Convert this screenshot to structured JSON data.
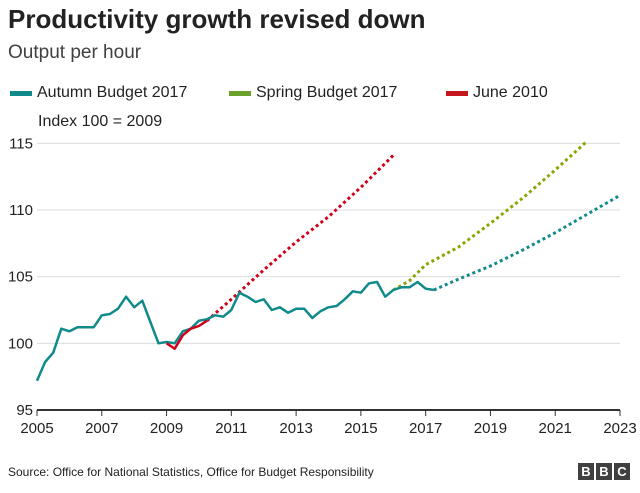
{
  "chart_data": {
    "type": "line",
    "title": "Productivity growth revised down",
    "subtitle": "Output per hour",
    "note": "Index 100 = 2009",
    "xlabel": "",
    "ylabel": "",
    "xlim": [
      2005,
      2023
    ],
    "ylim": [
      95,
      116
    ],
    "x_ticks": [
      "2005",
      "2007",
      "2009",
      "2011",
      "2013",
      "2015",
      "2017",
      "2019",
      "2021",
      "2023"
    ],
    "y_ticks": [
      "95",
      "100",
      "105",
      "110",
      "115"
    ],
    "grid": "horizontal",
    "legend_position": "top",
    "series": [
      {
        "name": "Autumn Budget 2017",
        "color": "#118a8b",
        "points": [
          [
            2005.0,
            97.2
          ],
          [
            2005.25,
            98.6
          ],
          [
            2005.5,
            99.3
          ],
          [
            2005.75,
            101.1
          ],
          [
            2006.0,
            100.9
          ],
          [
            2006.25,
            101.2
          ],
          [
            2006.5,
            101.2
          ],
          [
            2006.75,
            101.2
          ],
          [
            2007.0,
            102.1
          ],
          [
            2007.25,
            102.2
          ],
          [
            2007.5,
            102.6
          ],
          [
            2007.75,
            103.5
          ],
          [
            2008.0,
            102.7
          ],
          [
            2008.25,
            103.2
          ],
          [
            2008.5,
            101.6
          ],
          [
            2008.75,
            100.0
          ],
          [
            2009.0,
            100.1
          ],
          [
            2009.25,
            100.0
          ],
          [
            2009.5,
            100.9
          ],
          [
            2009.75,
            101.1
          ],
          [
            2010.0,
            101.7
          ],
          [
            2010.25,
            101.8
          ],
          [
            2010.5,
            102.1
          ],
          [
            2010.75,
            102.0
          ],
          [
            2011.0,
            102.5
          ],
          [
            2011.25,
            103.8
          ],
          [
            2011.5,
            103.5
          ],
          [
            2011.75,
            103.1
          ],
          [
            2012.0,
            103.3
          ],
          [
            2012.25,
            102.5
          ],
          [
            2012.5,
            102.7
          ],
          [
            2012.75,
            102.3
          ],
          [
            2013.0,
            102.6
          ],
          [
            2013.25,
            102.6
          ],
          [
            2013.5,
            101.9
          ],
          [
            2013.75,
            102.4
          ],
          [
            2014.0,
            102.7
          ],
          [
            2014.25,
            102.8
          ],
          [
            2014.5,
            103.3
          ],
          [
            2014.75,
            103.9
          ],
          [
            2015.0,
            103.8
          ],
          [
            2015.25,
            104.5
          ],
          [
            2015.5,
            104.6
          ],
          [
            2015.75,
            103.5
          ],
          [
            2016.0,
            104.0
          ],
          [
            2016.25,
            104.2
          ],
          [
            2016.5,
            104.2
          ],
          [
            2016.75,
            104.6
          ],
          [
            2017.0,
            104.1
          ],
          [
            2017.25,
            104.0
          ]
        ],
        "forecast": [
          [
            2017.25,
            104.0
          ],
          [
            2018.0,
            104.8
          ],
          [
            2019.0,
            105.8
          ],
          [
            2020.0,
            107.0
          ],
          [
            2021.0,
            108.3
          ],
          [
            2022.0,
            109.7
          ],
          [
            2023.0,
            111.1
          ]
        ]
      },
      {
        "name": "Spring Budget 2017",
        "color": "#8ba500",
        "legend_color": "#6aa02c",
        "forecast": [
          [
            2016.0,
            104.0
          ],
          [
            2016.5,
            104.7
          ],
          [
            2017.0,
            105.9
          ],
          [
            2018.0,
            107.2
          ],
          [
            2019.0,
            109.0
          ],
          [
            2020.0,
            110.9
          ],
          [
            2021.0,
            113.0
          ],
          [
            2022.0,
            115.2
          ]
        ]
      },
      {
        "name": "June 2010",
        "color": "#d0021b",
        "legend_color": "#c4161c",
        "points": [
          [
            2009.0,
            100.0
          ],
          [
            2009.25,
            99.6
          ],
          [
            2009.5,
            100.6
          ],
          [
            2009.75,
            101.1
          ],
          [
            2010.0,
            101.3
          ],
          [
            2010.25,
            101.7
          ]
        ],
        "forecast": [
          [
            2010.25,
            101.7
          ],
          [
            2011.0,
            103.3
          ],
          [
            2012.0,
            105.5
          ],
          [
            2013.0,
            107.6
          ],
          [
            2014.0,
            109.5
          ],
          [
            2015.0,
            111.7
          ],
          [
            2016.0,
            114.1
          ]
        ]
      }
    ]
  },
  "source": "Source: Office for National Statistics, Office for Budget Responsibility",
  "logo": [
    "B",
    "B",
    "C"
  ]
}
